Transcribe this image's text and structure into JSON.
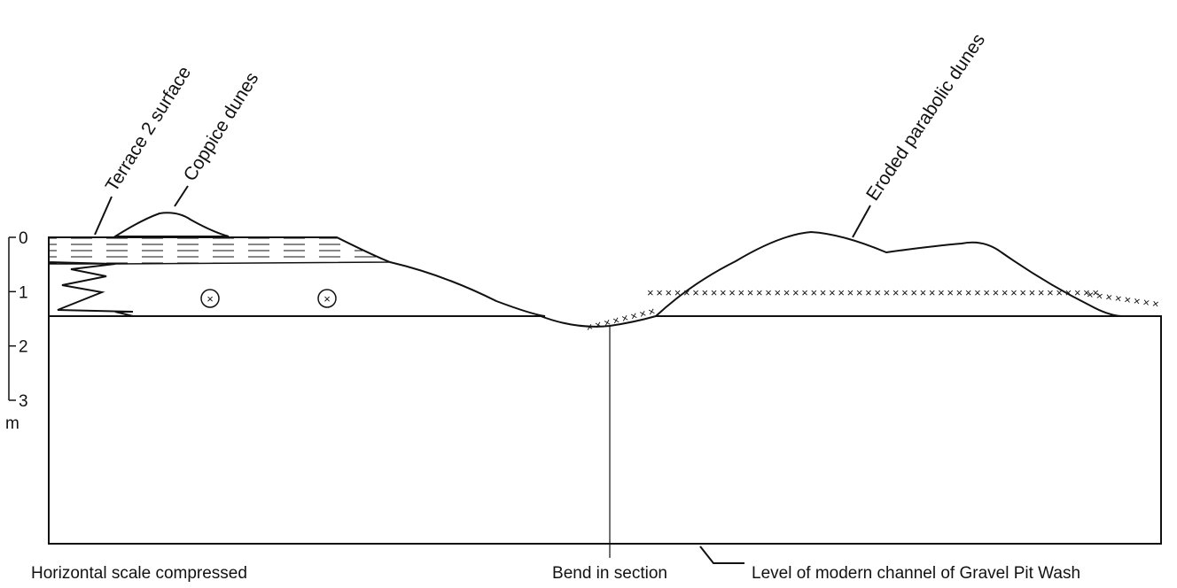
{
  "labels": {
    "terrace": "Terrace 2 surface",
    "coppice": "Coppice dunes",
    "parabolic": "Eroded parabolic dunes"
  },
  "scale": {
    "ticks": [
      0,
      1,
      2,
      3
    ],
    "range": [
      0,
      3
    ],
    "unit": "m"
  },
  "notes": {
    "horizontal": "Horizontal scale compressed",
    "bend": "Bend in section",
    "channel": "Level of modern channel of Gravel Pit Wash"
  }
}
